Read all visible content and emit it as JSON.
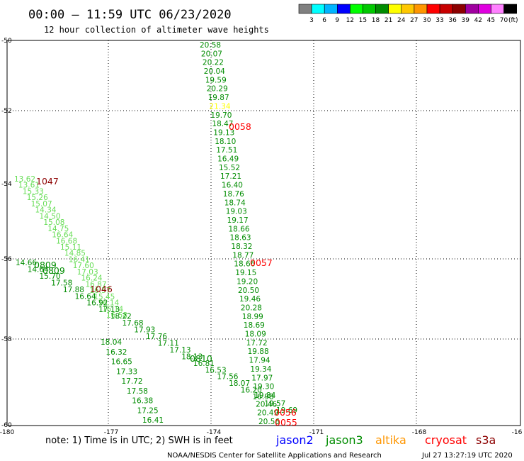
{
  "header": {
    "title": "00:00  – 11:59 UTC 06/23/2020",
    "subtitle": "12 hour collection of altimeter wave heights"
  },
  "legend": {
    "labels": [
      "3",
      "6",
      "9",
      "12",
      "15",
      "18",
      "21",
      "24",
      "27",
      "30",
      "33",
      "36",
      "39",
      "42",
      "45",
      "70"
    ],
    "unit": "(ft)",
    "colors": [
      "#808080",
      "#00ffff",
      "#00b4ff",
      "#0000ff",
      "#00ff00",
      "#00c800",
      "#008c00",
      "#ffff00",
      "#ffc800",
      "#ff9600",
      "#ff0000",
      "#c80000",
      "#8c0000",
      "#a000a0",
      "#e000e0",
      "#ff80ff",
      "#000000"
    ]
  },
  "axes": {
    "lon_labels": [
      "-180",
      "-177",
      "-174",
      "-171",
      "-168",
      "-16"
    ],
    "lat_labels": [
      "-50",
      "-52",
      "-54",
      "-56",
      "-58",
      "-60"
    ]
  },
  "pass_labels": [
    {
      "text": "0058",
      "color": "#ff0000"
    },
    {
      "text": "0057",
      "color": "#ff0000"
    },
    {
      "text": "1047",
      "color": "#8c0000"
    },
    {
      "text": "1046",
      "color": "#8c0000"
    },
    {
      "text": "0809",
      "color": "#008c00"
    },
    {
      "text": "0809",
      "color": "#008c00"
    },
    {
      "text": "0810",
      "color": "#008c00"
    },
    {
      "text": "0056",
      "color": "#ff0000"
    },
    {
      "text": "0055",
      "color": "#ff0000"
    }
  ],
  "tracks": [
    {
      "name": "cryosat",
      "color": "#008c00",
      "values": [
        "20.58",
        "20.07",
        "20.22",
        "20.04",
        "19.59",
        "20.29",
        "19.87",
        "21.34",
        "19.70",
        "18.47",
        "19.13",
        "18.10",
        "17.51",
        "16.49",
        "15.52",
        "17.21",
        "16.40",
        "18.76",
        "18.74",
        "19.03",
        "19.17",
        "18.66",
        "18.63",
        "18.32",
        "18.77",
        "18.66",
        "19.15",
        "19.20",
        "20.50",
        "19.46",
        "20.28",
        "18.99",
        "18.69",
        "18.09",
        "17.72",
        "19.88",
        "17.94",
        "19.34",
        "17.97",
        "19.30",
        "19.84",
        "20.46",
        "20.49",
        "20.56"
      ]
    },
    {
      "name": "s3a",
      "color": "#66dd55",
      "values": [
        "13.62",
        "13.61",
        "15.33",
        "15.26",
        "15.07",
        "14.34",
        "14.50",
        "15.08",
        "14.75",
        "16.64",
        "16.68",
        "15.11",
        "14.85",
        "16.41",
        "17.60",
        "17.03",
        "16.24",
        "16.87",
        "16.57",
        "15.45",
        "16.14",
        "16.14",
        "16.58"
      ]
    },
    {
      "name": "jason3",
      "color": "#008c00",
      "values": [
        "14.66",
        "14.64",
        "15.70",
        "17.58",
        "17.88",
        "16.64",
        "16.92",
        "17.13",
        "18.22",
        "17.68",
        "17.93",
        "17.76",
        "17.11",
        "17.13",
        "18.13",
        "16.81",
        "16.53",
        "17.56",
        "18.07",
        "16.20",
        "16.98",
        "19.57",
        "19.69"
      ]
    },
    {
      "name": "jason3-south",
      "color": "#008c00",
      "values": [
        "18.04",
        "16.32",
        "16.65",
        "17.33",
        "17.72",
        "17.58",
        "16.38",
        "17.25",
        "16.41"
      ]
    }
  ],
  "footer": {
    "note": "note:  1) Time is in UTC;  2) SWH is in feet",
    "satellites": [
      {
        "name": "jason2",
        "color": "#0000ff"
      },
      {
        "name": "jason3",
        "color": "#008c00"
      },
      {
        "name": "altika",
        "color": "#ff9600"
      },
      {
        "name": "cryosat",
        "color": "#ff0000"
      },
      {
        "name": "s3a",
        "color": "#8c0000"
      }
    ],
    "credit": "NOAA/NESDIS Center for Satellite Applications and Research",
    "timestamp": "Jul 27 13:27:19 UTC 2020"
  }
}
